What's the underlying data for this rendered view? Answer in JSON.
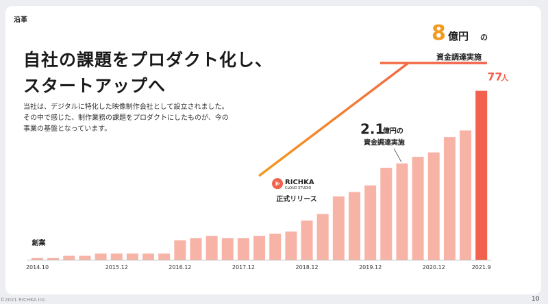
{
  "header": {
    "section_label": "沿革"
  },
  "headline": {
    "line1": "自社の課題をプロダクト化し、",
    "line2": "スタートアップへ"
  },
  "body": {
    "line1": "当社は、デジタルに特化した映像制作会社として設立されました。",
    "line2": "その中で感じた、制作業務の課題をプロダクトにしたものが、今の",
    "line3": "事業の基盤となっています。"
  },
  "footer": {
    "copyright": "©2021 RICHKA Inc.",
    "page_number": "10"
  },
  "colors": {
    "bar": "#f8b3a7",
    "bar_highlight": "#f2614d",
    "accent_orange": "#f39a1f",
    "axis": "#bbbbbb"
  },
  "chart_data": {
    "type": "bar",
    "title": "",
    "xlabel": "",
    "ylabel": "",
    "ylim": [
      0,
      80
    ],
    "grid": false,
    "x_tick_labels": [
      "2014.10",
      "2015.12",
      "2016.12",
      "2017.12",
      "2018.12",
      "2019.12",
      "2020.12",
      "2021.9"
    ],
    "values": [
      1,
      1,
      2,
      2,
      3,
      3,
      3,
      3,
      3,
      9,
      10,
      11,
      10,
      10,
      11,
      12,
      13,
      18,
      21,
      29,
      31,
      34,
      42,
      44,
      47,
      49,
      56,
      59,
      77
    ],
    "tick_bar_indices": [
      0,
      5,
      9,
      13,
      17,
      21,
      25,
      28
    ],
    "annotations": {
      "founding": {
        "label": "創業",
        "bar_index": 0
      },
      "release": {
        "logo_main": "RICHKA",
        "logo_sub": "CLOUD STUDIO",
        "label": "正式リリース",
        "bar_index": 17
      },
      "funding1": {
        "amount": "2.1",
        "unit": "億円の",
        "label": "資金調達実施",
        "bar_index": 23
      },
      "funding2": {
        "amount": "8",
        "unit": "億円",
        "particle": "の",
        "label": "資金調達実施"
      },
      "last_value": {
        "value": "77",
        "unit": "人",
        "bar_index": 28
      }
    }
  }
}
